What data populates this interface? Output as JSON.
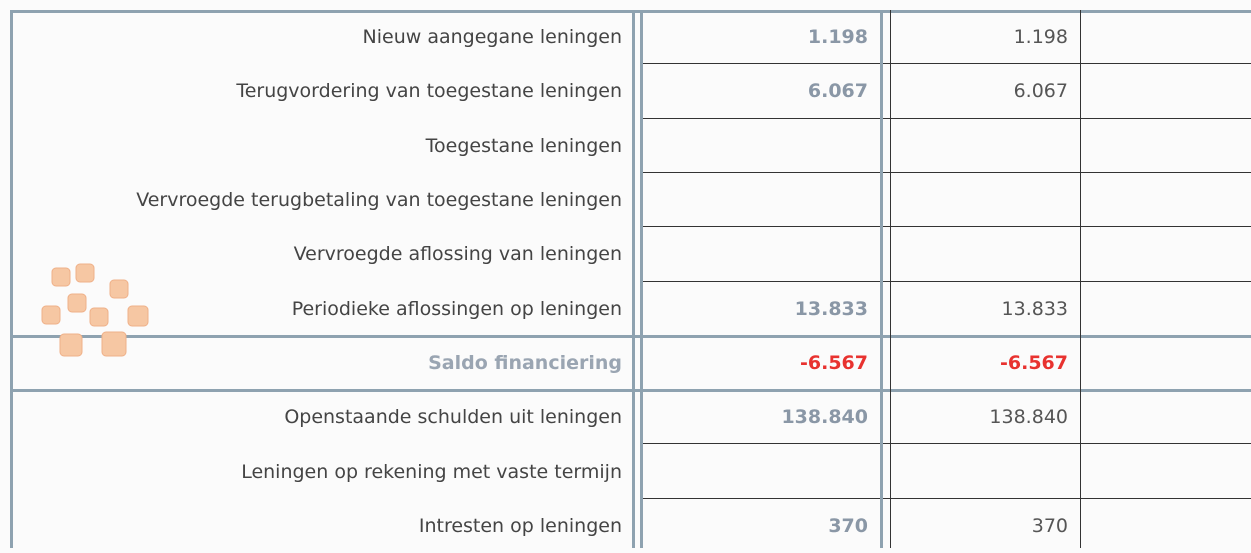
{
  "table": {
    "rows": [
      {
        "label": "Nieuw aangegane leningen",
        "values": [
          "1.198",
          "1.198"
        ]
      },
      {
        "label": "Terugvordering van toegestane leningen",
        "values": [
          "6.067",
          "6.067"
        ]
      },
      {
        "label": "Toegestane leningen",
        "values": [
          null,
          null
        ]
      },
      {
        "label": "Vervroegde terugbetaling van toegestane leningen",
        "values": [
          null,
          null
        ]
      },
      {
        "label": "Vervroegde aflossing van leningen",
        "values": [
          null,
          null
        ]
      },
      {
        "label": "Periodieke aflossingen op leningen",
        "values": [
          "13.833",
          "13.833"
        ]
      },
      {
        "label": "Saldo financiering",
        "values": [
          "-6.567",
          "-6.567"
        ]
      },
      {
        "label": "Openstaande schulden uit leningen",
        "values": [
          "138.840",
          "138.840"
        ]
      },
      {
        "label": "Leningen op rekening met vaste termijn",
        "values": [
          null,
          null
        ]
      },
      {
        "label": "Intresten op leningen",
        "values": [
          "370",
          "370"
        ]
      }
    ]
  }
}
